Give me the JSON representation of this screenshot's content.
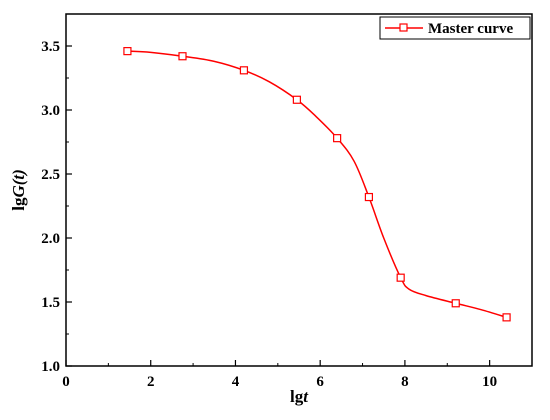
{
  "chart_data": {
    "type": "line",
    "xlabel": {
      "base": "lg",
      "var": "t"
    },
    "ylabel": {
      "base": "lg",
      "var": "G(t)"
    },
    "xlim": [
      0,
      11
    ],
    "ylim": [
      1.0,
      3.75
    ],
    "xticks": [
      0,
      2,
      4,
      6,
      8,
      10
    ],
    "yticks": [
      1.0,
      1.5,
      2.0,
      2.5,
      3.0,
      3.5
    ],
    "xtick_labels": [
      "0",
      "2",
      "4",
      "6",
      "8",
      "10"
    ],
    "ytick_labels": [
      "1.0",
      "1.5",
      "2.0",
      "2.5",
      "3.0",
      "3.5"
    ],
    "grid": false,
    "legend_position": "top-right",
    "series": [
      {
        "name": "Master curve",
        "color": "#ff0000",
        "marker": "open-square",
        "markers": {
          "x": [
            1.45,
            2.75,
            4.2,
            5.45,
            6.4,
            7.15,
            7.9,
            9.2,
            10.4
          ],
          "y": [
            3.46,
            3.42,
            3.31,
            3.08,
            2.78,
            2.32,
            1.69,
            1.49,
            1.38
          ]
        },
        "line": {
          "x": [
            1.45,
            2.0,
            2.75,
            3.5,
            4.2,
            4.8,
            5.45,
            5.9,
            6.4,
            6.8,
            7.15,
            7.5,
            7.9,
            8.1,
            8.5,
            9.2,
            9.8,
            10.4
          ],
          "y": [
            3.46,
            3.45,
            3.42,
            3.38,
            3.31,
            3.22,
            3.08,
            2.95,
            2.78,
            2.6,
            2.32,
            2.0,
            1.69,
            1.6,
            1.55,
            1.49,
            1.44,
            1.38
          ]
        }
      }
    ]
  }
}
